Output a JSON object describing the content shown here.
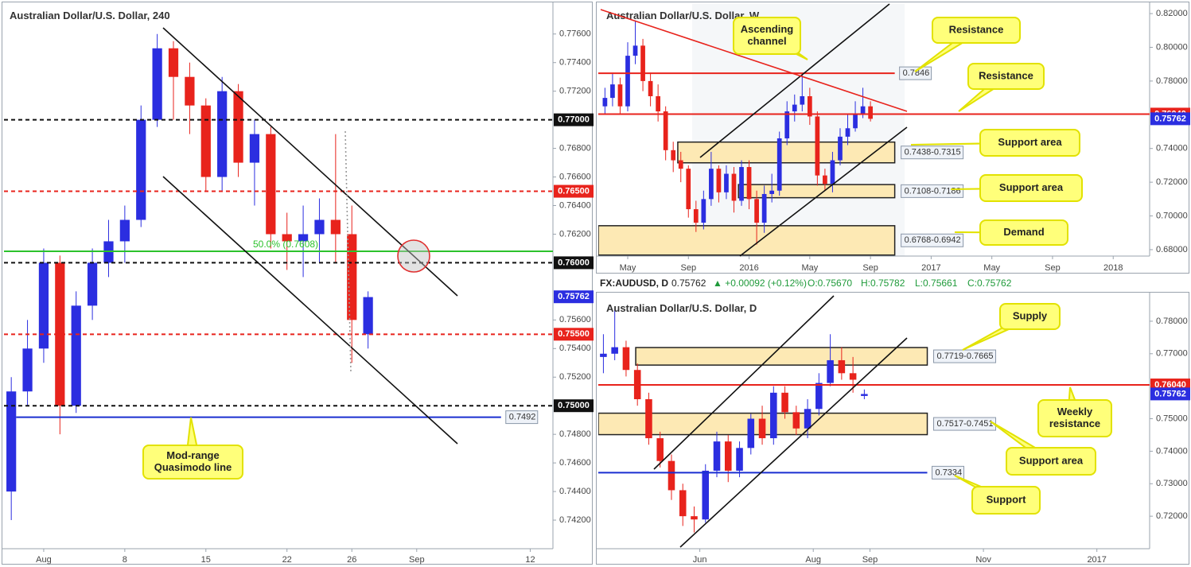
{
  "chart_data": [
    {
      "type": "candlestick",
      "title": "Australian Dollar/U.S. Dollar, 240",
      "up_color": "#2b2ee0",
      "down_color": "#e8231c",
      "x": [
        -2,
        -1,
        0,
        1,
        2,
        3,
        4,
        5,
        6,
        7,
        8,
        9,
        10,
        11,
        12,
        13,
        14,
        15,
        16,
        17,
        18,
        19,
        20
      ],
      "open": [
        0.744,
        0.751,
        0.754,
        0.76,
        0.75,
        0.757,
        0.76,
        0.7615,
        0.763,
        0.77,
        0.775,
        0.773,
        0.771,
        0.766,
        0.772,
        0.767,
        0.769,
        0.762,
        0.7615,
        0.762,
        0.763,
        0.762,
        0.755
      ],
      "high": [
        0.752,
        0.756,
        0.761,
        0.7605,
        0.758,
        0.761,
        0.763,
        0.764,
        0.771,
        0.776,
        0.7755,
        0.774,
        0.7715,
        0.773,
        0.7725,
        0.77,
        0.7695,
        0.7635,
        0.764,
        0.7645,
        0.769,
        0.764,
        0.758
      ],
      "low": [
        0.742,
        0.75,
        0.753,
        0.748,
        0.7495,
        0.756,
        0.759,
        0.76,
        0.7625,
        0.7695,
        0.77,
        0.769,
        0.765,
        0.765,
        0.766,
        0.764,
        0.761,
        0.7595,
        0.759,
        0.76,
        0.76,
        0.753,
        0.754
      ],
      "close": [
        0.751,
        0.754,
        0.76,
        0.75,
        0.757,
        0.76,
        0.7615,
        0.763,
        0.77,
        0.775,
        0.773,
        0.771,
        0.766,
        0.772,
        0.767,
        0.769,
        0.762,
        0.7615,
        0.762,
        0.763,
        0.762,
        0.756,
        0.7576
      ],
      "xlim": [
        -2.45,
        31.4
      ],
      "ylim": [
        0.74,
        0.7781
      ],
      "xticks": [
        {
          "value": 0,
          "label": "Aug"
        },
        {
          "value": 5,
          "label": "8"
        },
        {
          "value": 10,
          "label": "15"
        },
        {
          "value": 15,
          "label": "22"
        },
        {
          "value": 19,
          "label": "26"
        },
        {
          "value": 23,
          "label": "Sep"
        },
        {
          "value": 30,
          "label": "12"
        }
      ],
      "yticks": [
        {
          "value": 0.776,
          "label": "0.77600"
        },
        {
          "value": 0.774,
          "label": "0.77400"
        },
        {
          "value": 0.772,
          "label": "0.77200"
        },
        {
          "value": 0.768,
          "label": "0.76800"
        },
        {
          "value": 0.766,
          "label": "0.76600"
        },
        {
          "value": 0.764,
          "label": "0.76400"
        },
        {
          "value": 0.762,
          "label": "0.76200"
        },
        {
          "value": 0.756,
          "label": "0.75600"
        },
        {
          "value": 0.754,
          "label": "0.75400"
        },
        {
          "value": 0.752,
          "label": "0.75200"
        },
        {
          "value": 0.748,
          "label": "0.74800"
        },
        {
          "value": 0.746,
          "label": "0.74600"
        },
        {
          "value": 0.744,
          "label": "0.74400"
        },
        {
          "value": 0.742,
          "label": "0.74200"
        }
      ],
      "levels": [
        {
          "value": 0.77,
          "color": "#111111",
          "dash": true,
          "axis_label": "0.77000"
        },
        {
          "value": 0.765,
          "color": "#e8231c",
          "dash": true,
          "axis_label": "0.76500"
        },
        {
          "value": 0.76,
          "color": "#111111",
          "dash": true,
          "axis_label": "0.76000"
        },
        {
          "value": 0.755,
          "color": "#e8231c",
          "dash": true,
          "axis_label": "0.75500"
        },
        {
          "value": 0.75,
          "color": "#111111",
          "dash": true,
          "axis_label": "0.75000"
        },
        {
          "value": 0.7608,
          "color": "#2cc22c",
          "dash": false,
          "note": "50.0% (0.7608)"
        },
        {
          "value": 0.7492,
          "color": "#1a2fd0",
          "dash": false,
          "from": -1.7,
          "to": 28.2,
          "tag": "0.7492"
        }
      ],
      "last": {
        "value": 0.75762,
        "label": "0.75762",
        "color": "#2b2ee0"
      },
      "callouts": [
        [
          "Mod-range",
          "Quasimodo line"
        ]
      ]
    },
    {
      "type": "candlestick",
      "title": "Australian Dollar/U.S. Dollar, W",
      "up_color": "#2b2ee0",
      "down_color": "#e8231c",
      "x": [
        2.5,
        3,
        3.5,
        4,
        4.5,
        5,
        5.5,
        6,
        6.5,
        7,
        7.5,
        8,
        8.5,
        9,
        9.5,
        10,
        10.5,
        11,
        11.5,
        12,
        12.5,
        13,
        13.5,
        14,
        14.5,
        15,
        15.5,
        16,
        16.5,
        17,
        17.5,
        18,
        18.5,
        19,
        19.5,
        20
      ],
      "open": [
        0.765,
        0.77,
        0.778,
        0.765,
        0.795,
        0.801,
        0.78,
        0.771,
        0.762,
        0.739,
        0.733,
        0.728,
        0.704,
        0.696,
        0.71,
        0.728,
        0.714,
        0.725,
        0.709,
        0.729,
        0.71,
        0.696,
        0.713,
        0.715,
        0.746,
        0.762,
        0.766,
        0.771,
        0.759,
        0.724,
        0.719,
        0.733,
        0.747,
        0.752,
        0.76,
        0.765
      ],
      "high": [
        0.776,
        0.785,
        0.782,
        0.803,
        0.816,
        0.805,
        0.785,
        0.778,
        0.765,
        0.744,
        0.738,
        0.73,
        0.709,
        0.715,
        0.738,
        0.73,
        0.73,
        0.729,
        0.733,
        0.733,
        0.715,
        0.718,
        0.725,
        0.75,
        0.768,
        0.772,
        0.7835,
        0.776,
        0.762,
        0.728,
        0.738,
        0.752,
        0.76,
        0.768,
        0.776,
        0.768
      ],
      "low": [
        0.76,
        0.765,
        0.76,
        0.762,
        0.79,
        0.774,
        0.765,
        0.756,
        0.733,
        0.726,
        0.72,
        0.699,
        0.6905,
        0.692,
        0.706,
        0.708,
        0.71,
        0.702,
        0.706,
        0.704,
        0.683,
        0.69,
        0.708,
        0.712,
        0.742,
        0.756,
        0.762,
        0.754,
        0.718,
        0.715,
        0.714,
        0.73,
        0.742,
        0.75,
        0.758,
        0.756
      ],
      "close": [
        0.77,
        0.778,
        0.765,
        0.795,
        0.801,
        0.78,
        0.771,
        0.762,
        0.739,
        0.733,
        0.728,
        0.704,
        0.696,
        0.71,
        0.728,
        0.714,
        0.725,
        0.709,
        0.729,
        0.71,
        0.696,
        0.713,
        0.715,
        0.746,
        0.762,
        0.766,
        0.771,
        0.759,
        0.724,
        0.719,
        0.733,
        0.747,
        0.752,
        0.76,
        0.765,
        0.7576
      ],
      "xlim": [
        2.06,
        38.4
      ],
      "ylim": [
        0.6762,
        0.8257
      ],
      "xticks": [
        {
          "value": 4,
          "label": "May"
        },
        {
          "value": 8,
          "label": "Sep"
        },
        {
          "value": 12,
          "label": "2016"
        },
        {
          "value": 16,
          "label": "May"
        },
        {
          "value": 20,
          "label": "Sep"
        },
        {
          "value": 24,
          "label": "2017"
        },
        {
          "value": 28,
          "label": "May"
        },
        {
          "value": 32,
          "label": "Sep"
        },
        {
          "value": 36,
          "label": "2018"
        }
      ],
      "yticks": [
        {
          "value": 0.82,
          "label": "0.82000"
        },
        {
          "value": 0.8,
          "label": "0.80000"
        },
        {
          "value": 0.78,
          "label": "0.78000"
        },
        {
          "value": 0.74,
          "label": "0.74000"
        },
        {
          "value": 0.72,
          "label": "0.72000"
        },
        {
          "value": 0.7,
          "label": "0.70000"
        },
        {
          "value": 0.68,
          "label": "0.68000"
        }
      ],
      "zones": [
        {
          "top": 0.7438,
          "bottom": 0.7315,
          "from": 7.3,
          "to": 21.6,
          "label": "0.7438-0.7315"
        },
        {
          "top": 0.7186,
          "bottom": 0.7108,
          "from": 11.3,
          "to": 21.6,
          "label": "0.7108-0.7186"
        },
        {
          "top": 0.6942,
          "bottom": 0.6768,
          "from": 2.06,
          "to": 21.6,
          "label": "0.6768-0.6942"
        }
      ],
      "levels": [
        {
          "value": 0.7846,
          "color": "#e8231c",
          "dash": false,
          "from": 2.06,
          "to": 21.6,
          "tag": "0.7846"
        },
        {
          "value": 0.7604,
          "color": "#e8231c",
          "dash": false,
          "axis_label": "0.76040"
        }
      ],
      "last": {
        "value": 0.75762,
        "label": "0.75762",
        "color": "#2b2ee0"
      },
      "callouts": [
        [
          "Ascending",
          "channel"
        ],
        [
          "Resistance"
        ],
        [
          "Resistance"
        ],
        [
          "Support area"
        ],
        [
          "Support area"
        ],
        [
          "Demand"
        ]
      ]
    },
    {
      "type": "candlestick",
      "title": "Australian Dollar/U.S. Dollar, D",
      "quote": {
        "symbol": "FX:AUDUSD, D",
        "price": "0.75762",
        "change": "▲ +0.00092 (+0.12%)",
        "ohlc": [
          "O:0.75670",
          "H:0.75782",
          "L:0.75661",
          "C:0.75762"
        ]
      },
      "up_color": "#2b2ee0",
      "down_color": "#e8231c",
      "x": [
        3.3,
        3.5,
        3.7,
        3.9,
        4.1,
        4.3,
        4.5,
        4.7,
        4.9,
        5.1,
        5.3,
        5.5,
        5.7,
        5.9,
        6.1,
        6.3,
        6.5,
        6.7,
        6.9,
        7.1,
        7.3,
        7.5,
        7.7,
        7.9
      ],
      "open": [
        0.769,
        0.77,
        0.772,
        0.765,
        0.756,
        0.744,
        0.737,
        0.728,
        0.72,
        0.719,
        0.734,
        0.743,
        0.734,
        0.741,
        0.75,
        0.744,
        0.758,
        0.752,
        0.747,
        0.753,
        0.761,
        0.768,
        0.764,
        0.757
      ],
      "high": [
        0.776,
        0.7835,
        0.774,
        0.767,
        0.758,
        0.746,
        0.739,
        0.73,
        0.723,
        0.736,
        0.746,
        0.745,
        0.743,
        0.7515,
        0.754,
        0.76,
        0.76,
        0.754,
        0.756,
        0.764,
        0.776,
        0.772,
        0.769,
        0.759
      ],
      "low": [
        0.764,
        0.768,
        0.763,
        0.754,
        0.742,
        0.735,
        0.725,
        0.717,
        0.715,
        0.718,
        0.732,
        0.7305,
        0.732,
        0.739,
        0.742,
        0.742,
        0.75,
        0.745,
        0.744,
        0.751,
        0.76,
        0.762,
        0.758,
        0.756
      ],
      "close": [
        0.77,
        0.772,
        0.765,
        0.756,
        0.744,
        0.737,
        0.728,
        0.72,
        0.719,
        0.734,
        0.743,
        0.734,
        0.741,
        0.75,
        0.744,
        0.758,
        0.752,
        0.747,
        0.753,
        0.761,
        0.768,
        0.764,
        0.762,
        0.7576
      ],
      "xlim": [
        3.21,
        12.93
      ],
      "ylim": [
        0.71,
        0.7883
      ],
      "xticks": [
        {
          "value": 5,
          "label": "Jun"
        },
        {
          "value": 7,
          "label": "Aug"
        },
        {
          "value": 8,
          "label": "Sep"
        },
        {
          "value": 10,
          "label": "Nov"
        },
        {
          "value": 12,
          "label": "2017"
        }
      ],
      "yticks": [
        {
          "value": 0.78,
          "label": "0.78000"
        },
        {
          "value": 0.77,
          "label": "0.77000"
        },
        {
          "value": 0.75,
          "label": "0.75000"
        },
        {
          "value": 0.74,
          "label": "0.74000"
        },
        {
          "value": 0.73,
          "label": "0.73000"
        },
        {
          "value": 0.72,
          "label": "0.72000"
        }
      ],
      "zones": [
        {
          "top": 0.7719,
          "bottom": 0.7665,
          "from": 3.87,
          "to": 9.01,
          "label": "0.7719-0.7665"
        },
        {
          "top": 0.7517,
          "bottom": 0.7451,
          "from": 3.21,
          "to": 9.01,
          "label": "0.7517-0.7451"
        }
      ],
      "levels": [
        {
          "value": 0.7604,
          "color": "#e8231c",
          "dash": false,
          "axis_label": "0.76040"
        },
        {
          "value": 0.7334,
          "color": "#1a2fd0",
          "dash": false,
          "from": 3.21,
          "to": 9.01,
          "tag": "0.7334"
        }
      ],
      "last": {
        "value": 0.75762,
        "label": "0.75762",
        "color": "#2b2ee0"
      },
      "callouts": [
        [
          "Supply"
        ],
        [
          "Weekly",
          "resistance"
        ],
        [
          "Support area"
        ],
        [
          "Support"
        ]
      ]
    }
  ]
}
